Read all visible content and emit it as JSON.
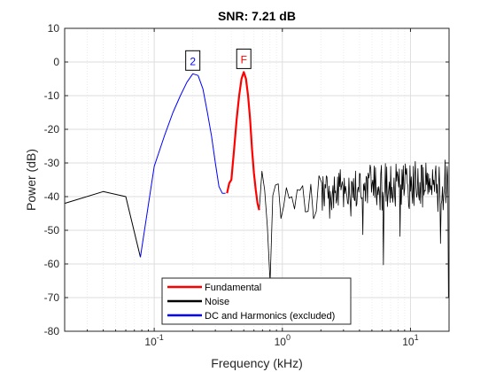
{
  "chart_data": {
    "type": "line",
    "title": "SNR:    7.21 dB",
    "xlabel": "Frequency (kHz)",
    "ylabel": "Power (dB)",
    "xscale": "log",
    "xlim": [
      0.02,
      20
    ],
    "ylim": [
      -80,
      10
    ],
    "x_ticks": [
      0.1,
      1,
      10
    ],
    "x_tick_labels": [
      "10-1",
      "100",
      "101"
    ],
    "y_ticks": [
      10,
      0,
      -10,
      -20,
      -30,
      -40,
      -50,
      -60,
      -70,
      -80
    ],
    "y_tick_labels": [
      "10",
      "0",
      "-10",
      "-20",
      "-30",
      "-40",
      "-50",
      "-60",
      "-70",
      "-80"
    ],
    "grid": true,
    "legend_position": "bottom-center",
    "series": [
      {
        "name": "Fundamental",
        "color": "#ff0000",
        "x": [
          0.37,
          0.385,
          0.4,
          0.42,
          0.44,
          0.46,
          0.48,
          0.5,
          0.52,
          0.54,
          0.56,
          0.58,
          0.6,
          0.62,
          0.64,
          0.66
        ],
        "y": [
          -39,
          -36,
          -35,
          -26,
          -17,
          -10,
          -5,
          -3,
          -5,
          -10,
          -17,
          -26,
          -33,
          -38,
          -42,
          -44
        ]
      },
      {
        "name": "Noise",
        "color": "#000000",
        "x": [
          0.02,
          0.04,
          0.06,
          0.078
        ],
        "y": [
          -42,
          -38.5,
          -40,
          -58
        ]
      },
      {
        "name": "DC and Harmonics (excluded)",
        "color": "#0000ff",
        "x": [
          0.078,
          0.1,
          0.12,
          0.14,
          0.16,
          0.18,
          0.2,
          0.22,
          0.24,
          0.26,
          0.28,
          0.3,
          0.32,
          0.34,
          0.36
        ],
        "y": [
          -58,
          -31,
          -22,
          -15,
          -10,
          -6,
          -3.5,
          -4,
          -8,
          -15,
          -22,
          -30,
          -37,
          -39,
          -39
        ]
      }
    ],
    "markers": [
      {
        "label": "2",
        "x": 0.2,
        "y": -3.5,
        "color": "#0000ff"
      },
      {
        "label": "F",
        "x": 0.5,
        "y": -3,
        "color": "#ff0000"
      }
    ]
  }
}
